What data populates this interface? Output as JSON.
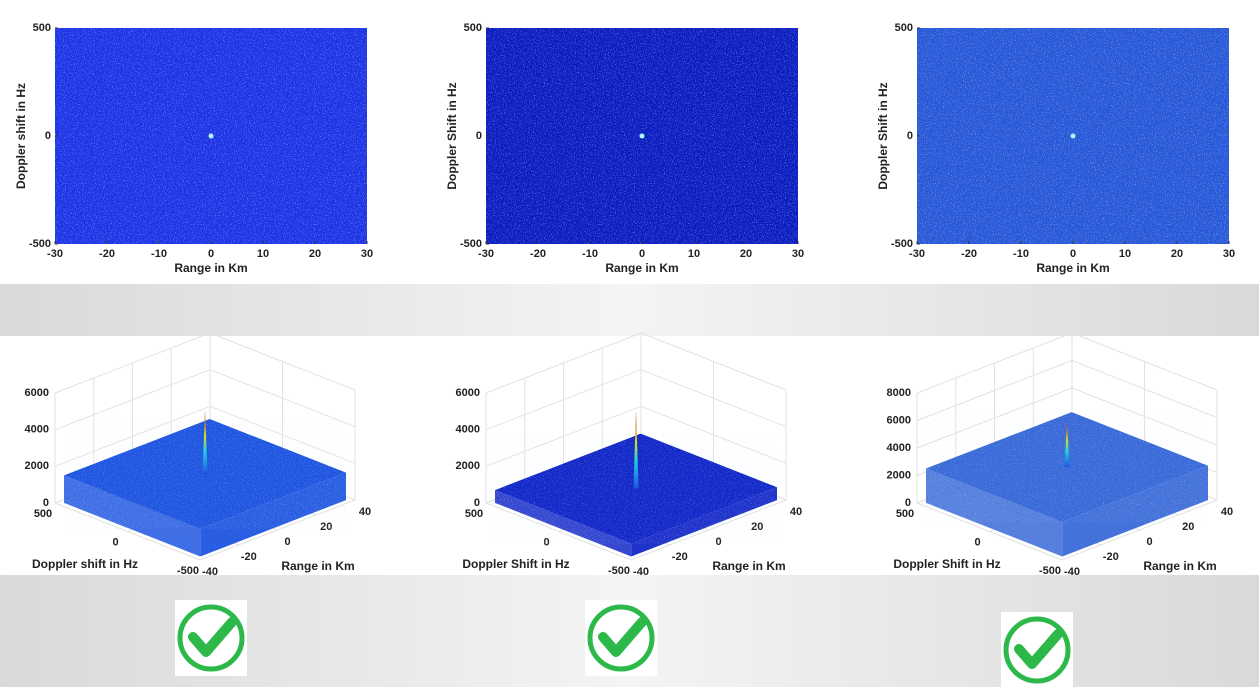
{
  "chart_data": [
    {
      "type": "heatmap",
      "xlabel": "Range in Km",
      "ylabel": "Doppler shift in Hz",
      "color": "#1d33e6",
      "xlim": [
        -30,
        30
      ],
      "xticks": [
        -30,
        -20,
        -10,
        0,
        10,
        20,
        30
      ],
      "ylim": [
        -500,
        500
      ],
      "yticks": [
        -500,
        0,
        500
      ],
      "peak": {
        "x": 0,
        "y": 0
      }
    },
    {
      "type": "heatmap",
      "xlabel": "Range in Km",
      "ylabel": "Doppler Shift in Hz",
      "color": "#0b1cc0",
      "xlim": [
        -30,
        30
      ],
      "xticks": [
        -30,
        -20,
        -10,
        0,
        10,
        20,
        30
      ],
      "ylim": [
        -500,
        500
      ],
      "yticks": [
        -500,
        0,
        500
      ],
      "peak": {
        "x": 0,
        "y": 0
      }
    },
    {
      "type": "heatmap",
      "xlabel": "Range in Km",
      "ylabel": "Doppler Shift in Hz",
      "color": "#2857d8",
      "xlim": [
        -30,
        30
      ],
      "xticks": [
        -30,
        -20,
        -10,
        0,
        10,
        20,
        30
      ],
      "ylim": [
        -500,
        500
      ],
      "yticks": [
        -500,
        0,
        500
      ],
      "peak": {
        "x": 0,
        "y": 0
      }
    },
    {
      "type": "surface3d",
      "xlabel": "Range in Km",
      "ylabel": "Doppler shift in Hz",
      "color": "#1f55e0",
      "xlim": [
        -40,
        40
      ],
      "xticks": [
        -40,
        -20,
        0,
        20,
        40
      ],
      "ylim": [
        -500,
        500
      ],
      "yticks": [
        -500,
        0,
        500
      ],
      "zlim": [
        0,
        6000
      ],
      "zticks": [
        0,
        2000,
        4000,
        6000
      ],
      "noise_level": 1500,
      "peak": 5000
    },
    {
      "type": "surface3d",
      "xlabel": "Range in Km",
      "ylabel": "Doppler Shift in Hz",
      "color": "#1328c8",
      "xlim": [
        -40,
        40
      ],
      "xticks": [
        -40,
        -20,
        0,
        20,
        40
      ],
      "ylim": [
        -500,
        500
      ],
      "yticks": [
        -500,
        0,
        500
      ],
      "zlim": [
        0,
        6000
      ],
      "zticks": [
        0,
        2000,
        4000,
        6000
      ],
      "noise_level": 700,
      "peak": 5000
    },
    {
      "type": "surface3d",
      "xlabel": "Range in Km",
      "ylabel": "Doppler Shift in Hz",
      "color": "#3a6ad8",
      "xlim": [
        -40,
        40
      ],
      "xticks": [
        -40,
        -20,
        0,
        20,
        40
      ],
      "ylim": [
        -500,
        500
      ],
      "yticks": [
        -500,
        0,
        500
      ],
      "zlim": [
        0,
        8000
      ],
      "zticks": [
        0,
        2000,
        4000,
        6000,
        8000
      ],
      "noise_level": 2500,
      "peak": 5800
    }
  ]
}
